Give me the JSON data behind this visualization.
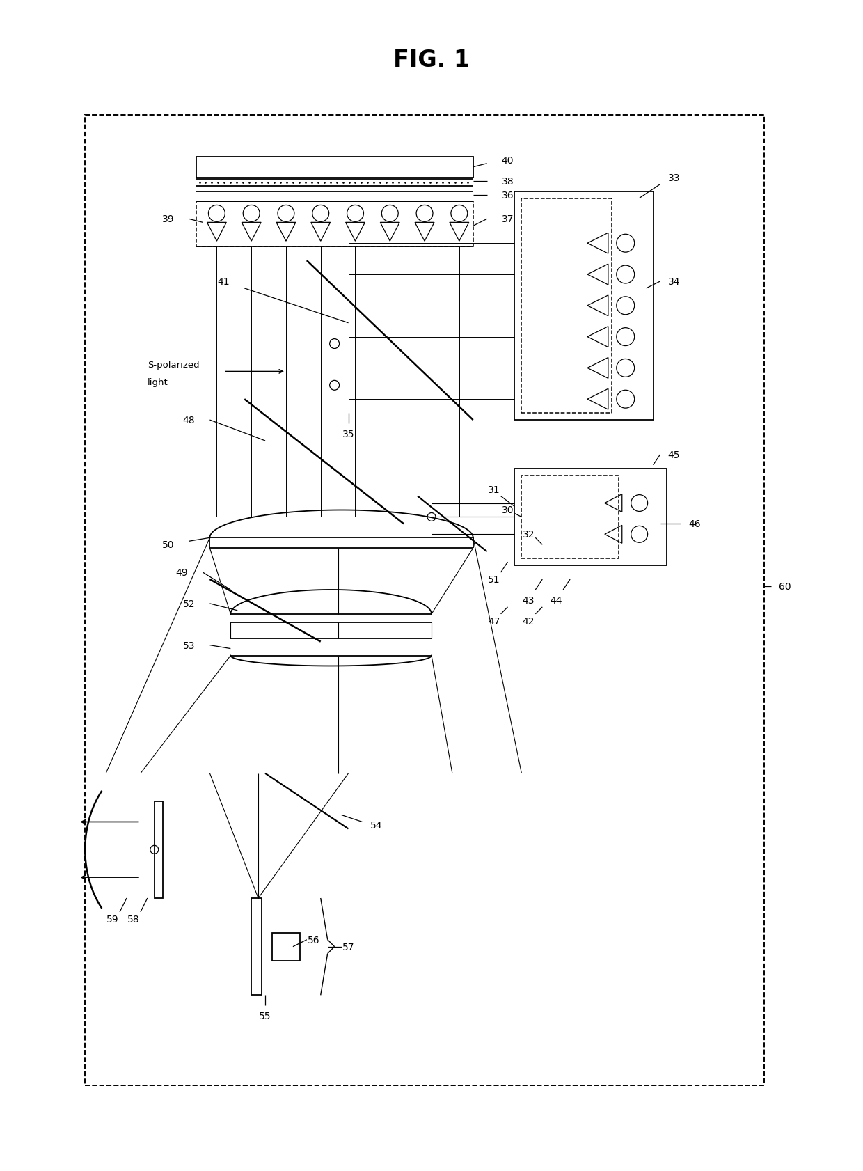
{
  "title": "FIG. 1",
  "bg": "#ffffff",
  "lc": "#000000",
  "fig_w": 12.4,
  "fig_h": 16.83,
  "dpi": 100
}
